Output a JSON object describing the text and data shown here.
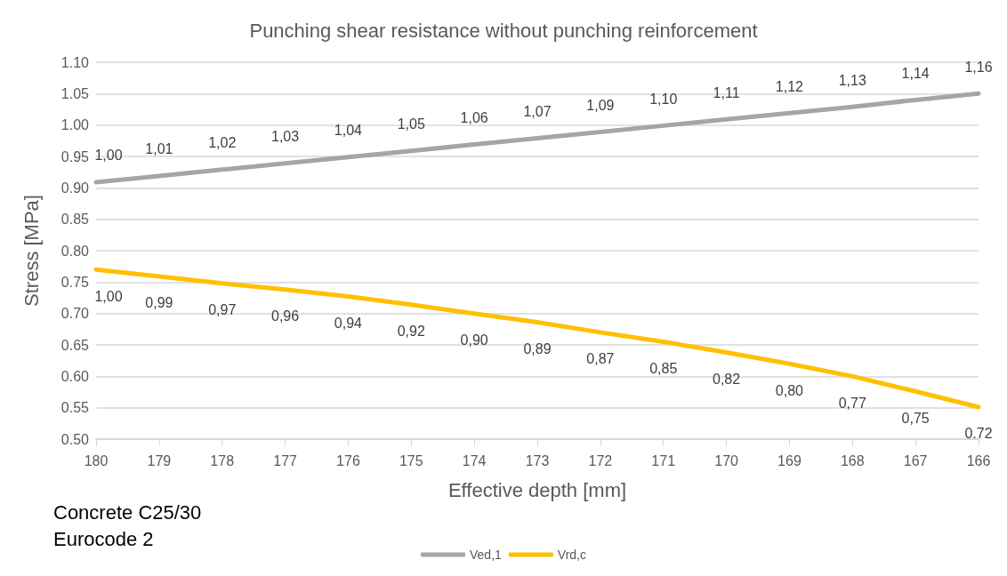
{
  "chart_data": {
    "type": "line",
    "title": "Punching shear resistance without punching reinforcement",
    "xlabel": "Effective depth [mm]",
    "ylabel": "Stress [MPa]",
    "categories": [
      "180",
      "179",
      "178",
      "177",
      "176",
      "175",
      "174",
      "173",
      "172",
      "171",
      "170",
      "169",
      "168",
      "167",
      "166"
    ],
    "series": [
      {
        "name": "Ved,1",
        "color": "#a5a5a5",
        "values": [
          0.909,
          0.919,
          0.929,
          0.939,
          0.949,
          0.959,
          0.969,
          0.979,
          0.989,
          0.999,
          1.009,
          1.019,
          1.029,
          1.04,
          1.05
        ]
      },
      {
        "name": "Vrd,c",
        "color": "#ffc000",
        "values": [
          0.77,
          0.759,
          0.748,
          0.738,
          0.727,
          0.714,
          0.7,
          0.686,
          0.67,
          0.655,
          0.638,
          0.62,
          0.6,
          0.576,
          0.551
        ]
      }
    ],
    "ylim": [
      0.5,
      1.1
    ],
    "yticks": [
      {
        "value": 0.5,
        "label": "0.50"
      },
      {
        "value": 0.55,
        "label": "0.55"
      },
      {
        "value": 0.6,
        "label": "0.60"
      },
      {
        "value": 0.65,
        "label": "0.65"
      },
      {
        "value": 0.7,
        "label": "0.70"
      },
      {
        "value": 0.75,
        "label": "0.75"
      },
      {
        "value": 0.8,
        "label": "0.80"
      },
      {
        "value": 0.85,
        "label": "0.85"
      },
      {
        "value": 0.9,
        "label": "0.90"
      },
      {
        "value": 0.95,
        "label": "0.95"
      },
      {
        "value": 1.0,
        "label": "1.00"
      },
      {
        "value": 1.05,
        "label": "1.05"
      },
      {
        "value": 1.1,
        "label": "1.10"
      }
    ],
    "grid": "y",
    "legend": "bottom",
    "marker": "none",
    "line_style": "solid",
    "annotations": [
      "Concrete C25/30",
      "Eurocode 2",
      {
        "text": "1,00",
        "x": "180",
        "y": 0.909
      },
      {
        "text": "1,01",
        "x": "179",
        "y": 0.919
      },
      {
        "text": "1,02",
        "x": "178",
        "y": 0.929
      },
      {
        "text": "1,03",
        "x": "177",
        "y": 0.939
      },
      {
        "text": "1,04",
        "x": "176",
        "y": 0.949
      },
      {
        "text": "1,05",
        "x": "175",
        "y": 0.959
      },
      {
        "text": "1,06",
        "x": "174",
        "y": 0.969
      },
      {
        "text": "1,07",
        "x": "173",
        "y": 0.979
      },
      {
        "text": "1,09",
        "x": "172",
        "y": 0.989
      },
      {
        "text": "1,10",
        "x": "171",
        "y": 0.999
      },
      {
        "text": "1,11",
        "x": "170",
        "y": 1.009
      },
      {
        "text": "1,12",
        "x": "169",
        "y": 1.019
      },
      {
        "text": "1,13",
        "x": "168",
        "y": 1.029
      },
      {
        "text": "1,14",
        "x": "167",
        "y": 1.04
      },
      {
        "text": "1,16",
        "x": "166",
        "y": 1.05
      },
      {
        "text": "1,00",
        "x": "180",
        "y": 0.77
      },
      {
        "text": "0,99",
        "x": "179",
        "y": 0.759
      },
      {
        "text": "0,97",
        "x": "178",
        "y": 0.748
      },
      {
        "text": "0,96",
        "x": "177",
        "y": 0.738
      },
      {
        "text": "0,94",
        "x": "176",
        "y": 0.727
      },
      {
        "text": "0,92",
        "x": "175",
        "y": 0.714
      },
      {
        "text": "0,90",
        "x": "174",
        "y": 0.7
      },
      {
        "text": "0,89",
        "x": "173",
        "y": 0.686
      },
      {
        "text": "0,87",
        "x": "172",
        "y": 0.67
      },
      {
        "text": "0,85",
        "x": "171",
        "y": 0.655
      },
      {
        "text": "0,82",
        "x": "170",
        "y": 0.638
      },
      {
        "text": "0,80",
        "x": "169",
        "y": 0.62
      },
      {
        "text": "0,77",
        "x": "168",
        "y": 0.6
      },
      {
        "text": "0,75",
        "x": "167",
        "y": 0.576
      },
      {
        "text": "0,72",
        "x": "166",
        "y": 0.551
      }
    ]
  }
}
